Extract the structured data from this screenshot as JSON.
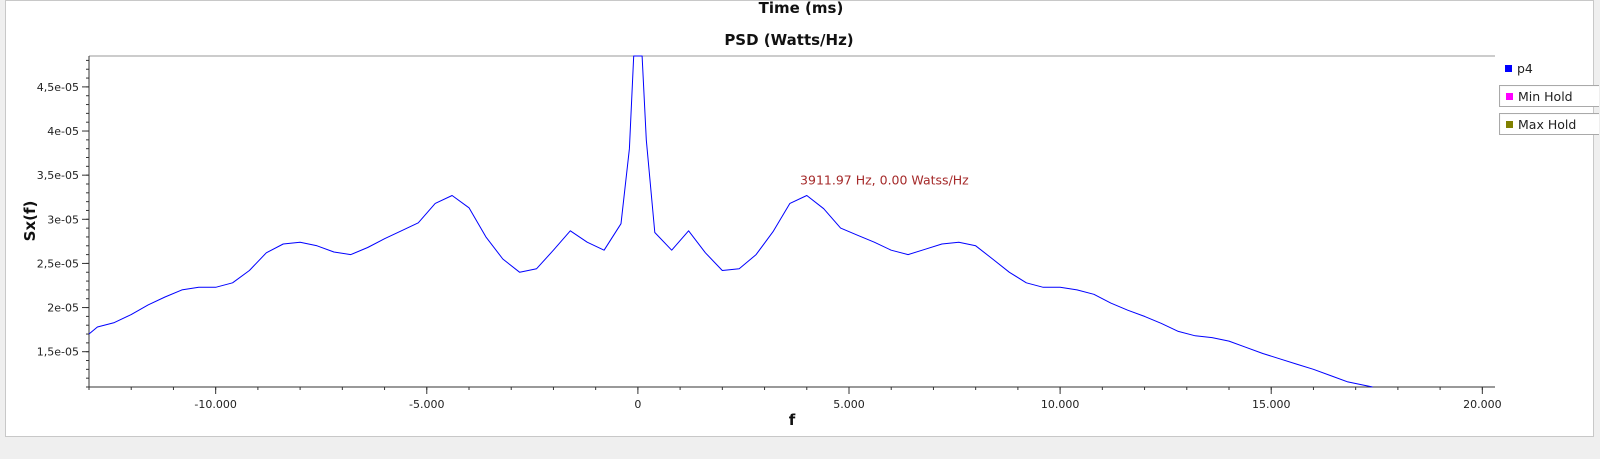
{
  "window": {
    "top_label": "Time (ms)"
  },
  "chart_data": {
    "type": "line",
    "title": "PSD (Watts/Hz)",
    "xlabel": "f",
    "ylabel": "Sx(f)",
    "xlim": [
      -13000,
      20300
    ],
    "ylim": [
      1.1e-05,
      4.85e-05
    ],
    "x_ticks": [
      -10000,
      -5000,
      0,
      5000,
      10000,
      15000,
      20000
    ],
    "x_tick_labels": [
      "-10.000",
      "-5.000",
      "0",
      "5.000",
      "10.000",
      "15.000",
      "20.000"
    ],
    "y_ticks": [
      1.5e-05,
      2e-05,
      2.5e-05,
      3e-05,
      3.5e-05,
      4e-05,
      4.5e-05
    ],
    "y_tick_labels": [
      "1,5e-05",
      "2e-05",
      "2,5e-05",
      "3e-05",
      "3,5e-05",
      "4e-05",
      "4,5e-05"
    ],
    "annotation": {
      "text": "3911.97 Hz, 0.00 Watss/Hz",
      "x": 3912,
      "y": 3.28e-05,
      "color": "#a52a2a"
    },
    "legend": [
      {
        "name": "p4",
        "color": "#0000ff"
      },
      {
        "name": "Min Hold",
        "color": "#ff00ff"
      },
      {
        "name": "Max Hold",
        "color": "#808000"
      }
    ],
    "series": [
      {
        "name": "p4",
        "color": "#0000ff",
        "x": [
          -13000,
          -12800,
          -12400,
          -12000,
          -11600,
          -11200,
          -10800,
          -10400,
          -10000,
          -9600,
          -9200,
          -8800,
          -8400,
          -8000,
          -7600,
          -7200,
          -6800,
          -6400,
          -6000,
          -5600,
          -5200,
          -4800,
          -4400,
          -4000,
          -3600,
          -3200,
          -2800,
          -2400,
          -2000,
          -1600,
          -1200,
          -800,
          -400,
          -200,
          -100,
          0,
          100,
          200,
          400,
          800,
          1200,
          1600,
          2000,
          2400,
          2800,
          3200,
          3600,
          4000,
          4400,
          4800,
          5200,
          5600,
          6000,
          6400,
          6800,
          7200,
          7600,
          8000,
          8400,
          8800,
          9200,
          9600,
          10000,
          10400,
          10800,
          11200,
          11600,
          12000,
          12400,
          12800,
          13200,
          13600,
          14000,
          14400,
          14800,
          15200,
          15600,
          16000,
          16400,
          16800,
          17200,
          17400
        ],
        "y": [
          1.7e-05,
          1.78e-05,
          1.83e-05,
          1.92e-05,
          2.03e-05,
          2.12e-05,
          2.2e-05,
          2.23e-05,
          2.23e-05,
          2.28e-05,
          2.42e-05,
          2.62e-05,
          2.72e-05,
          2.74e-05,
          2.7e-05,
          2.63e-05,
          2.6e-05,
          2.68e-05,
          2.78e-05,
          2.87e-05,
          2.96e-05,
          3.18e-05,
          3.27e-05,
          3.13e-05,
          2.8e-05,
          2.55e-05,
          2.4e-05,
          2.44e-05,
          2.65e-05,
          2.87e-05,
          2.74e-05,
          2.65e-05,
          2.95e-05,
          3.8e-05,
          4.85e-05,
          4.85e-05,
          4.85e-05,
          3.9e-05,
          2.85e-05,
          2.65e-05,
          2.87e-05,
          2.62e-05,
          2.42e-05,
          2.44e-05,
          2.6e-05,
          2.86e-05,
          3.18e-05,
          3.27e-05,
          3.12e-05,
          2.9e-05,
          2.82e-05,
          2.74e-05,
          2.65e-05,
          2.6e-05,
          2.66e-05,
          2.72e-05,
          2.74e-05,
          2.7e-05,
          2.55e-05,
          2.4e-05,
          2.28e-05,
          2.23e-05,
          2.23e-05,
          2.2e-05,
          2.15e-05,
          2.05e-05,
          1.97e-05,
          1.9e-05,
          1.82e-05,
          1.73e-05,
          1.68e-05,
          1.66e-05,
          1.62e-05,
          1.55e-05,
          1.48e-05,
          1.42e-05,
          1.36e-05,
          1.3e-05,
          1.23e-05,
          1.16e-05,
          1.12e-05,
          1.1e-05
        ]
      }
    ]
  }
}
